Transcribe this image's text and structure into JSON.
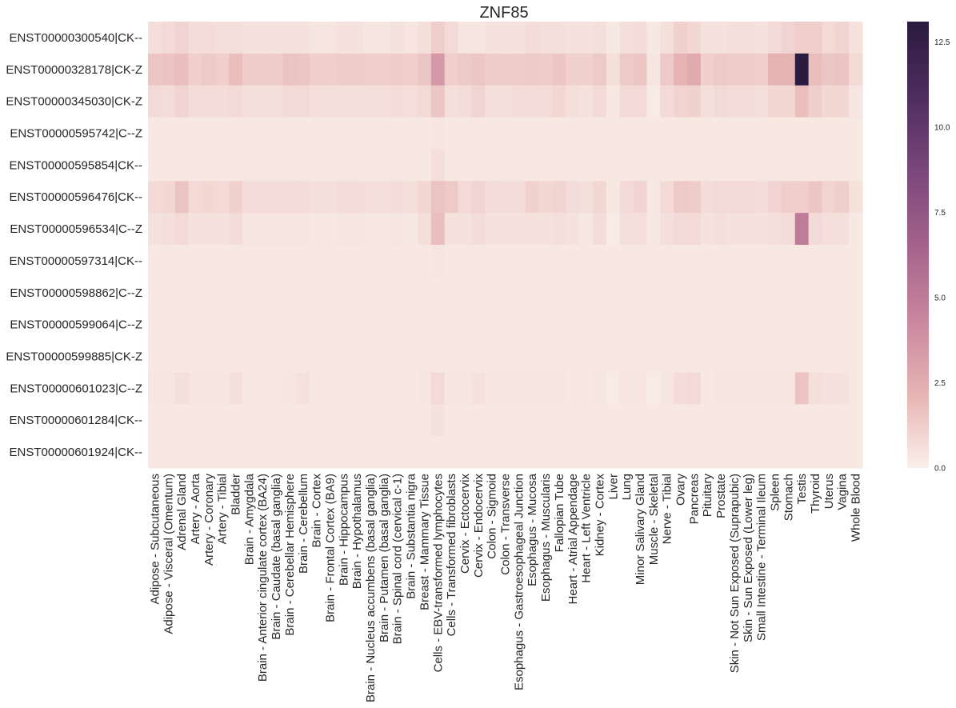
{
  "chart_data": {
    "type": "heatmap",
    "title": "ZNF85",
    "rows": [
      "ENST00000300540|CK--",
      "ENST00000328178|CK-Z",
      "ENST00000345030|CK-Z",
      "ENST00000595742|C--Z",
      "ENST00000595854|CK--",
      "ENST00000596476|CK--",
      "ENST00000596534|C--Z",
      "ENST00000597314|CK--",
      "ENST00000598862|C--Z",
      "ENST00000599064|C--Z",
      "ENST00000599885|CK-Z",
      "ENST00000601023|C--Z",
      "ENST00000601284|CK--",
      "ENST00000601924|CK--"
    ],
    "columns": [
      "Adipose - Subcutaneous",
      "Adipose - Visceral (Omentum)",
      "Adrenal Gland",
      "Artery - Aorta",
      "Artery - Coronary",
      "Artery - Tibial",
      "Bladder",
      "Brain - Amygdala",
      "Brain - Anterior cingulate cortex (BA24)",
      "Brain - Caudate (basal ganglia)",
      "Brain - Cerebellar Hemisphere",
      "Brain - Cerebellum",
      "Brain - Cortex",
      "Brain - Frontal Cortex (BA9)",
      "Brain - Hippocampus",
      "Brain - Hypothalamus",
      "Brain - Nucleus accumbens (basal ganglia)",
      "Brain - Putamen (basal ganglia)",
      "Brain - Spinal cord (cervical c-1)",
      "Brain - Substantia nigra",
      "Breast - Mammary Tissue",
      "Cells - EBV-transformed lymphocytes",
      "Cells - Transformed fibroblasts",
      "Cervix - Ectocervix",
      "Cervix - Endocervix",
      "Colon - Sigmoid",
      "Colon - Transverse",
      "Esophagus - Gastroesophageal Junction",
      "Esophagus - Mucosa",
      "Esophagus - Muscularis",
      "Fallopian Tube",
      "Heart - Atrial Appendage",
      "Heart - Left Ventricle",
      "Kidney - Cortex",
      "Liver",
      "Lung",
      "Minor Salivary Gland",
      "Muscle - Skeletal",
      "Nerve - Tibial",
      "Ovary",
      "Pancreas",
      "Pituitary",
      "Prostate",
      "Skin - Not Sun Exposed (Suprapubic)",
      "Skin - Sun Exposed (Lower leg)",
      "Small Intestine - Terminal Ileum",
      "Spleen",
      "Stomach",
      "Testis",
      "Thyroid",
      "Uterus",
      "Vagina",
      "Whole Blood"
    ],
    "values": [
      [
        0.6,
        0.8,
        1.0,
        0.7,
        0.7,
        0.6,
        0.6,
        0.5,
        0.5,
        0.5,
        0.5,
        0.5,
        0.4,
        0.4,
        0.5,
        0.5,
        0.4,
        0.4,
        0.5,
        0.4,
        0.6,
        1.2,
        0.8,
        0.4,
        0.4,
        0.5,
        0.5,
        0.5,
        0.7,
        0.6,
        0.6,
        0.5,
        0.5,
        0.6,
        0.3,
        0.6,
        0.7,
        0.3,
        0.6,
        1.1,
        0.9,
        0.5,
        0.5,
        0.6,
        0.6,
        0.5,
        0.8,
        1.0,
        1.2,
        1.2,
        0.8,
        1.0,
        0.5
      ],
      [
        1.5,
        1.6,
        1.8,
        1.2,
        1.4,
        1.2,
        1.8,
        1.3,
        1.3,
        1.3,
        1.6,
        1.5,
        1.2,
        1.2,
        1.3,
        1.3,
        1.2,
        1.2,
        1.3,
        1.2,
        1.5,
        3.5,
        1.2,
        1.4,
        1.5,
        1.3,
        1.3,
        1.3,
        1.4,
        1.3,
        1.5,
        1.1,
        1.1,
        1.4,
        0.6,
        1.4,
        1.5,
        0.4,
        1.4,
        2.2,
        2.6,
        1.2,
        1.4,
        1.3,
        1.3,
        1.2,
        2.2,
        2.2,
        13.0,
        1.8,
        1.5,
        1.6,
        0.8
      ],
      [
        0.8,
        0.7,
        1.0,
        0.7,
        0.7,
        0.7,
        0.8,
        0.6,
        0.6,
        0.6,
        0.8,
        0.8,
        0.6,
        0.6,
        0.6,
        0.6,
        0.6,
        0.6,
        0.7,
        0.6,
        0.8,
        1.5,
        0.6,
        0.7,
        1.0,
        0.6,
        0.6,
        0.7,
        0.7,
        0.7,
        0.9,
        0.6,
        0.5,
        0.8,
        0.3,
        0.8,
        0.8,
        0.2,
        0.8,
        1.0,
        1.1,
        0.6,
        0.8,
        0.7,
        0.7,
        0.6,
        0.9,
        0.9,
        1.8,
        1.2,
        0.9,
        0.9,
        0.4
      ],
      [
        0.3,
        0.3,
        0.3,
        0.3,
        0.3,
        0.3,
        0.3,
        0.3,
        0.3,
        0.3,
        0.3,
        0.3,
        0.3,
        0.3,
        0.3,
        0.3,
        0.3,
        0.3,
        0.3,
        0.3,
        0.3,
        0.4,
        0.3,
        0.3,
        0.3,
        0.3,
        0.3,
        0.3,
        0.3,
        0.3,
        0.3,
        0.3,
        0.3,
        0.3,
        0.3,
        0.3,
        0.3,
        0.3,
        0.3,
        0.3,
        0.3,
        0.3,
        0.3,
        0.3,
        0.3,
        0.3,
        0.3,
        0.3,
        0.3,
        0.3,
        0.3,
        0.3,
        0.3
      ],
      [
        0.3,
        0.3,
        0.3,
        0.3,
        0.3,
        0.3,
        0.3,
        0.3,
        0.3,
        0.3,
        0.3,
        0.3,
        0.3,
        0.3,
        0.3,
        0.3,
        0.3,
        0.3,
        0.3,
        0.3,
        0.3,
        0.6,
        0.3,
        0.3,
        0.3,
        0.3,
        0.3,
        0.3,
        0.3,
        0.3,
        0.3,
        0.3,
        0.3,
        0.3,
        0.3,
        0.3,
        0.3,
        0.3,
        0.3,
        0.3,
        0.3,
        0.3,
        0.3,
        0.3,
        0.3,
        0.3,
        0.3,
        0.3,
        0.3,
        0.3,
        0.3,
        0.3,
        0.3
      ],
      [
        0.8,
        0.9,
        1.6,
        0.8,
        0.9,
        0.8,
        1.1,
        0.7,
        0.7,
        0.7,
        0.7,
        0.7,
        0.6,
        0.6,
        0.7,
        0.7,
        0.6,
        0.6,
        0.7,
        0.6,
        0.9,
        1.6,
        1.4,
        0.8,
        1.0,
        0.7,
        0.7,
        0.7,
        1.1,
        0.9,
        1.0,
        0.7,
        0.6,
        0.9,
        0.3,
        0.8,
        1.0,
        0.3,
        0.8,
        1.4,
        1.3,
        0.7,
        0.8,
        0.8,
        0.8,
        0.7,
        1.0,
        1.2,
        1.2,
        1.5,
        1.0,
        1.2,
        0.5
      ],
      [
        0.5,
        0.6,
        0.8,
        0.5,
        0.5,
        0.5,
        0.7,
        0.4,
        0.4,
        0.4,
        0.4,
        0.4,
        0.3,
        0.3,
        0.4,
        0.4,
        0.3,
        0.3,
        0.4,
        0.3,
        0.6,
        1.8,
        0.5,
        0.5,
        0.7,
        0.5,
        0.5,
        0.5,
        0.5,
        0.5,
        0.6,
        0.5,
        0.3,
        0.7,
        0.2,
        0.6,
        0.6,
        0.3,
        0.6,
        0.8,
        0.8,
        0.5,
        0.6,
        0.5,
        0.5,
        0.5,
        0.6,
        0.7,
        5.0,
        0.8,
        0.6,
        0.6,
        0.3
      ],
      [
        0.3,
        0.3,
        0.3,
        0.3,
        0.3,
        0.3,
        0.3,
        0.3,
        0.3,
        0.3,
        0.3,
        0.3,
        0.3,
        0.3,
        0.3,
        0.3,
        0.3,
        0.3,
        0.3,
        0.3,
        0.3,
        0.4,
        0.3,
        0.3,
        0.3,
        0.3,
        0.3,
        0.3,
        0.3,
        0.3,
        0.3,
        0.3,
        0.3,
        0.3,
        0.3,
        0.3,
        0.3,
        0.3,
        0.3,
        0.3,
        0.3,
        0.3,
        0.3,
        0.3,
        0.3,
        0.3,
        0.3,
        0.3,
        0.3,
        0.3,
        0.3,
        0.3,
        0.3
      ],
      [
        0.3,
        0.3,
        0.3,
        0.3,
        0.3,
        0.3,
        0.3,
        0.3,
        0.3,
        0.3,
        0.3,
        0.3,
        0.3,
        0.3,
        0.3,
        0.3,
        0.3,
        0.3,
        0.3,
        0.3,
        0.3,
        0.3,
        0.3,
        0.3,
        0.3,
        0.3,
        0.3,
        0.3,
        0.3,
        0.3,
        0.3,
        0.3,
        0.3,
        0.3,
        0.3,
        0.3,
        0.3,
        0.3,
        0.3,
        0.3,
        0.3,
        0.3,
        0.3,
        0.3,
        0.3,
        0.3,
        0.3,
        0.3,
        0.3,
        0.3,
        0.3,
        0.3,
        0.3
      ],
      [
        0.3,
        0.3,
        0.3,
        0.3,
        0.3,
        0.3,
        0.3,
        0.3,
        0.3,
        0.3,
        0.3,
        0.3,
        0.3,
        0.3,
        0.3,
        0.3,
        0.3,
        0.3,
        0.3,
        0.3,
        0.3,
        0.3,
        0.3,
        0.3,
        0.3,
        0.3,
        0.3,
        0.3,
        0.3,
        0.3,
        0.3,
        0.3,
        0.3,
        0.3,
        0.3,
        0.3,
        0.3,
        0.3,
        0.3,
        0.3,
        0.3,
        0.3,
        0.3,
        0.3,
        0.3,
        0.3,
        0.3,
        0.3,
        0.3,
        0.3,
        0.3,
        0.3,
        0.3
      ],
      [
        0.3,
        0.3,
        0.3,
        0.3,
        0.3,
        0.3,
        0.3,
        0.3,
        0.3,
        0.3,
        0.3,
        0.3,
        0.3,
        0.3,
        0.3,
        0.3,
        0.3,
        0.3,
        0.3,
        0.3,
        0.3,
        0.3,
        0.3,
        0.3,
        0.3,
        0.3,
        0.3,
        0.3,
        0.3,
        0.3,
        0.3,
        0.3,
        0.3,
        0.3,
        0.3,
        0.3,
        0.3,
        0.3,
        0.3,
        0.3,
        0.3,
        0.3,
        0.3,
        0.3,
        0.3,
        0.3,
        0.3,
        0.3,
        0.3,
        0.3,
        0.3,
        0.3,
        0.3
      ],
      [
        0.4,
        0.4,
        0.6,
        0.4,
        0.4,
        0.4,
        0.6,
        0.3,
        0.3,
        0.3,
        0.4,
        0.5,
        0.3,
        0.3,
        0.3,
        0.3,
        0.3,
        0.3,
        0.3,
        0.3,
        0.4,
        0.8,
        0.4,
        0.4,
        0.5,
        0.4,
        0.4,
        0.4,
        0.4,
        0.4,
        0.4,
        0.3,
        0.3,
        0.4,
        0.2,
        0.4,
        0.4,
        0.2,
        0.4,
        0.7,
        0.8,
        0.3,
        0.4,
        0.4,
        0.4,
        0.4,
        0.4,
        0.4,
        1.6,
        0.6,
        0.5,
        0.5,
        0.3
      ],
      [
        0.3,
        0.3,
        0.3,
        0.3,
        0.3,
        0.3,
        0.3,
        0.3,
        0.3,
        0.3,
        0.3,
        0.3,
        0.3,
        0.3,
        0.3,
        0.3,
        0.3,
        0.3,
        0.3,
        0.3,
        0.3,
        0.5,
        0.3,
        0.3,
        0.3,
        0.3,
        0.3,
        0.3,
        0.3,
        0.3,
        0.3,
        0.3,
        0.3,
        0.3,
        0.3,
        0.3,
        0.3,
        0.3,
        0.3,
        0.3,
        0.3,
        0.3,
        0.3,
        0.3,
        0.3,
        0.3,
        0.3,
        0.3,
        0.3,
        0.3,
        0.3,
        0.3,
        0.3
      ],
      [
        0.3,
        0.3,
        0.3,
        0.3,
        0.3,
        0.3,
        0.3,
        0.3,
        0.3,
        0.3,
        0.3,
        0.3,
        0.3,
        0.3,
        0.3,
        0.3,
        0.3,
        0.3,
        0.3,
        0.3,
        0.3,
        0.3,
        0.3,
        0.3,
        0.3,
        0.3,
        0.3,
        0.3,
        0.3,
        0.3,
        0.3,
        0.3,
        0.3,
        0.3,
        0.3,
        0.3,
        0.3,
        0.3,
        0.3,
        0.3,
        0.3,
        0.3,
        0.3,
        0.3,
        0.3,
        0.3,
        0.3,
        0.3,
        0.3,
        0.3,
        0.3,
        0.3,
        0.3
      ]
    ],
    "vmin": 0,
    "vmax": 13.1,
    "colorbar_ticks": [
      0.0,
      2.5,
      5.0,
      7.5,
      10.0,
      12.5
    ],
    "colorbar_tick_labels": [
      "0.0",
      "2.5",
      "5.0",
      "7.5",
      "10.0",
      "12.5"
    ],
    "colormap": [
      "#faf0ea",
      "#e6b3b3",
      "#c9869e",
      "#a4628b",
      "#7a467b",
      "#4e2d5f",
      "#2a1a3e"
    ]
  }
}
